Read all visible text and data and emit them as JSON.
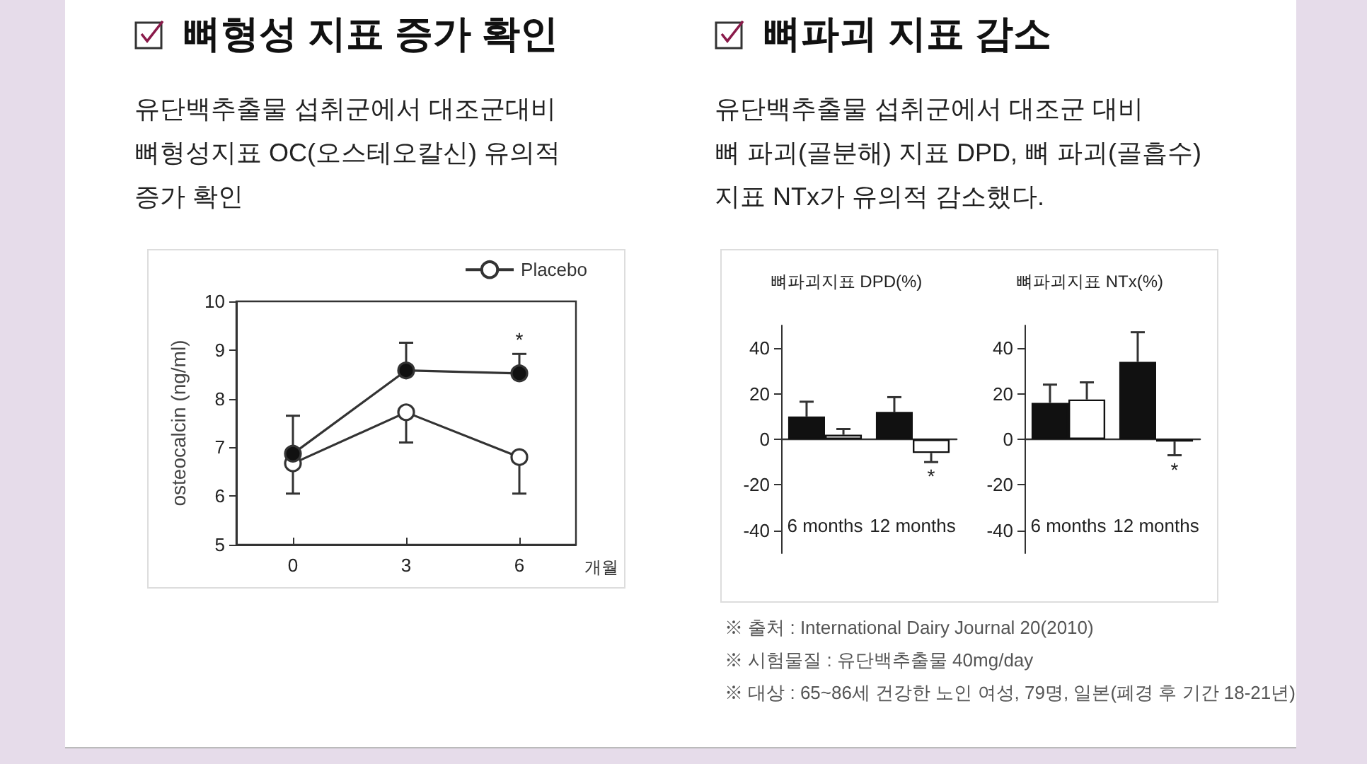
{
  "chart_data": [
    {
      "type": "line",
      "title": "뼈형성 지표 증가 확인",
      "subtitle": "유단백추출물 섭취군에서 대조군대비\n뼈형성지표 OC(오스테오칼신) 유의적\n증가 확인",
      "categories": [
        "0",
        "3",
        "6"
      ],
      "xlabel": "개월",
      "ylabel": "osteocalcin (ng/ml)",
      "ylim": [
        5,
        10
      ],
      "yticks": [
        5,
        6,
        7,
        8,
        9,
        10
      ],
      "legend": "top right",
      "marker": "circle",
      "series": [
        {
          "name": "Placebo",
          "color": "#ffffff",
          "values": [
            6.67,
            7.72,
            6.8
          ],
          "errors": [
            [
              6.05,
              6.67
            ],
            [
              7.1,
              7.72
            ],
            [
              6.05,
              6.8
            ]
          ]
        },
        {
          "color": "#111111",
          "values": [
            6.87,
            8.58,
            8.52
          ],
          "errors": [
            [
              6.87,
              7.65
            ],
            [
              8.58,
              9.15
            ],
            [
              8.52,
              8.92
            ]
          ]
        }
      ],
      "annotations": [
        "*"
      ]
    },
    {
      "type": "other",
      "title": "뼈파괴 지표 감소",
      "subtitle": "유단백추출물 섭취군에서 대조군 대비\n뼈 파괴(골분해) 지표 DPD, 뼈 파괴(골흡수)\n지표 NTx가 유의적 감소했다.",
      "annotations": [
        "※ 출처 : International Dairy Journal 20(2010)",
        "※ 시험물질 : 유단백추출물 40mg/day",
        "※ 대상 : 65~86세 건강한 노인 여성, 79명, 일본(폐경 후 기간 18-21년)"
      ]
    },
    {
      "type": "bar",
      "title": "뼈파괴지표 DPD(%)",
      "categories": [
        "6 months",
        "12 months"
      ],
      "ylim": [
        -50,
        50
      ],
      "yticks": [
        -40,
        -20,
        0,
        20,
        40
      ],
      "series": [
        {
          "color": "#111111",
          "values": [
            10,
            12
          ],
          "errors": [
            [
              10,
              16.5
            ],
            [
              12,
              18.5
            ]
          ]
        },
        {
          "color": "#ffffff",
          "values": [
            2,
            -6
          ],
          "errors": [
            [
              2,
              4.5
            ],
            [
              -10,
              -6
            ]
          ]
        }
      ],
      "annotations": [
        "*"
      ]
    },
    {
      "type": "bar",
      "title": "뼈파괴지표 NTx(%)",
      "categories": [
        "6 months",
        "12 months"
      ],
      "ylim": [
        -50,
        50
      ],
      "yticks": [
        -40,
        -20,
        0,
        20,
        40
      ],
      "series": [
        {
          "color": "#111111",
          "values": [
            16,
            34
          ],
          "errors": [
            [
              16,
              24
            ],
            [
              34,
              47
            ]
          ]
        },
        {
          "color": "#ffffff",
          "values": [
            17.5,
            -1
          ],
          "errors": [
            [
              17.5,
              25
            ],
            [
              -7,
              -1
            ]
          ]
        }
      ],
      "annotations": [
        "*"
      ]
    }
  ]
}
